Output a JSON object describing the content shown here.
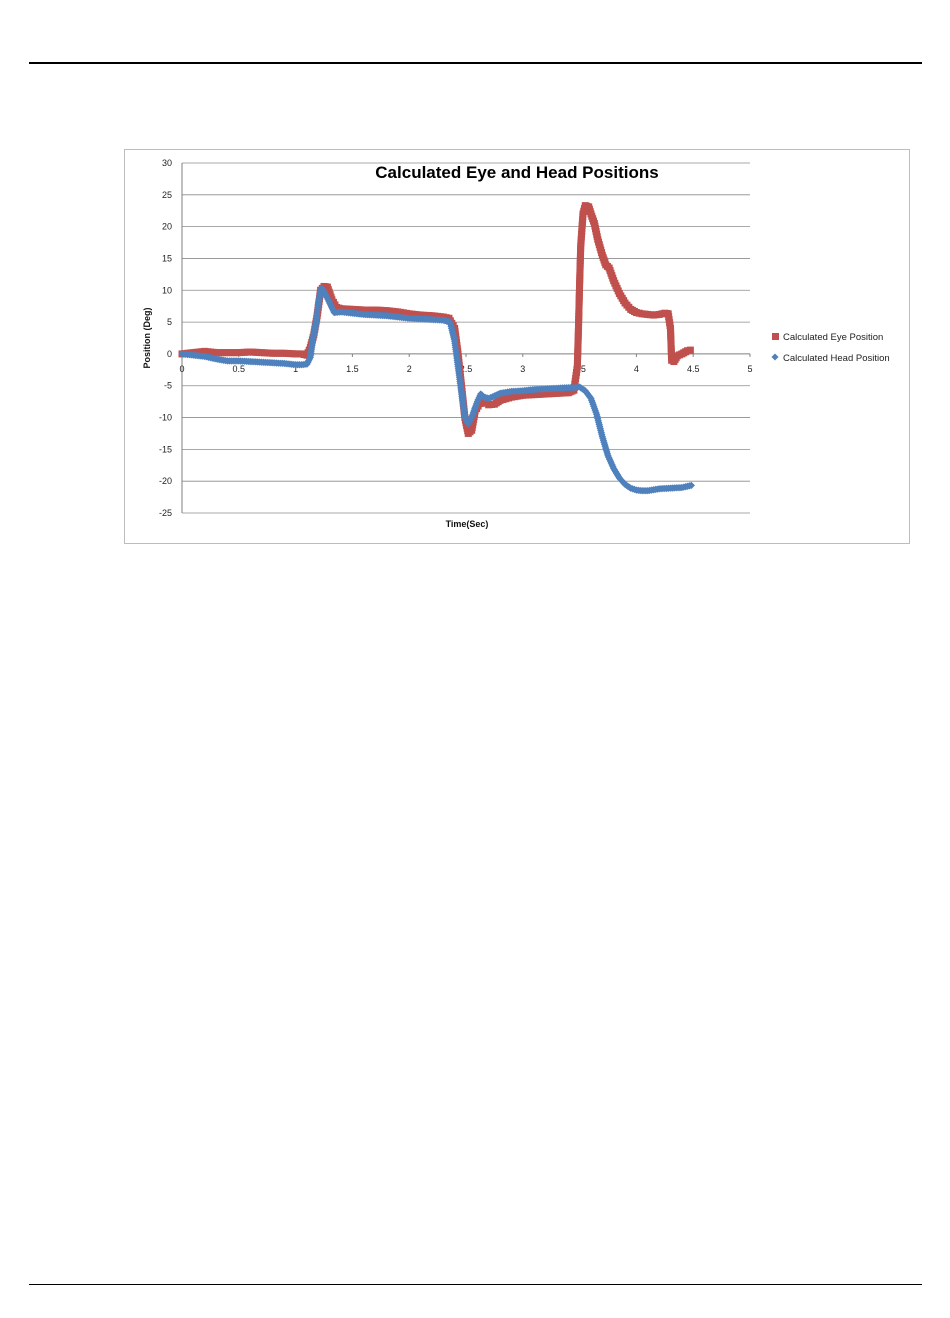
{
  "chart_data": {
    "type": "scatter",
    "title": "Calculated Eye and Head Positions",
    "xlabel": "Time(Sec)",
    "ylabel": "Position (Deg)",
    "xlim": [
      0,
      5
    ],
    "ylim": [
      -25,
      30
    ],
    "xticks": [
      "0",
      "0.5",
      "1",
      "1.5",
      "2",
      "2.5",
      "3",
      "3.5",
      "4",
      "4.5",
      "5"
    ],
    "yticks": [
      "30",
      "25",
      "20",
      "15",
      "10",
      "5",
      "0",
      "-5",
      "-10",
      "-15",
      "-20",
      "-25"
    ],
    "grid": true,
    "legend_position": "right",
    "series": [
      {
        "name": "Calculated Eye Position",
        "color": "#c0504d",
        "marker": "square",
        "points": [
          [
            0,
            0
          ],
          [
            0.1,
            0.2
          ],
          [
            0.2,
            0.4
          ],
          [
            0.3,
            0.2
          ],
          [
            0.4,
            0.2
          ],
          [
            0.5,
            0.2
          ],
          [
            0.6,
            0.3
          ],
          [
            0.7,
            0.2
          ],
          [
            0.8,
            0.1
          ],
          [
            0.9,
            0.1
          ],
          [
            1.0,
            0
          ],
          [
            1.05,
            0
          ],
          [
            1.1,
            -0.2
          ],
          [
            1.13,
            1
          ],
          [
            1.16,
            3
          ],
          [
            1.19,
            6
          ],
          [
            1.22,
            10
          ],
          [
            1.25,
            10.6
          ],
          [
            1.28,
            10.5
          ],
          [
            1.32,
            8.5
          ],
          [
            1.36,
            7.3
          ],
          [
            1.4,
            7.1
          ],
          [
            1.5,
            7.0
          ],
          [
            1.6,
            6.9
          ],
          [
            1.7,
            6.9
          ],
          [
            1.8,
            6.8
          ],
          [
            1.9,
            6.6
          ],
          [
            2.0,
            6.3
          ],
          [
            2.1,
            6.1
          ],
          [
            2.2,
            6.0
          ],
          [
            2.3,
            5.8
          ],
          [
            2.35,
            5.6
          ],
          [
            2.4,
            4
          ],
          [
            2.43,
            0
          ],
          [
            2.46,
            -5
          ],
          [
            2.49,
            -10
          ],
          [
            2.52,
            -12.5
          ],
          [
            2.55,
            -12
          ],
          [
            2.58,
            -9
          ],
          [
            2.62,
            -7.8
          ],
          [
            2.66,
            -7.5
          ],
          [
            2.7,
            -8
          ],
          [
            2.75,
            -7.9
          ],
          [
            2.8,
            -7.3
          ],
          [
            2.9,
            -6.8
          ],
          [
            3.0,
            -6.5
          ],
          [
            3.1,
            -6.4
          ],
          [
            3.2,
            -6.3
          ],
          [
            3.3,
            -6.2
          ],
          [
            3.4,
            -6.1
          ],
          [
            3.45,
            -5.7
          ],
          [
            3.48,
            -2
          ],
          [
            3.49,
            4
          ],
          [
            3.5,
            11
          ],
          [
            3.51,
            17
          ],
          [
            3.53,
            22
          ],
          [
            3.55,
            23.3
          ],
          [
            3.58,
            23.1
          ],
          [
            3.6,
            22
          ],
          [
            3.63,
            20.5
          ],
          [
            3.66,
            18
          ],
          [
            3.7,
            15.5
          ],
          [
            3.73,
            14
          ],
          [
            3.76,
            13.5
          ],
          [
            3.8,
            11.5
          ],
          [
            3.85,
            9.5
          ],
          [
            3.9,
            8
          ],
          [
            3.95,
            7
          ],
          [
            4.0,
            6.5
          ],
          [
            4.05,
            6.3
          ],
          [
            4.1,
            6.2
          ],
          [
            4.15,
            6.1
          ],
          [
            4.2,
            6.2
          ],
          [
            4.25,
            6.4
          ],
          [
            4.28,
            6.3
          ],
          [
            4.3,
            4
          ],
          [
            4.31,
            -1
          ],
          [
            4.33,
            -1.2
          ],
          [
            4.36,
            -0.3
          ],
          [
            4.4,
            0
          ],
          [
            4.45,
            0.5
          ],
          [
            4.5,
            0.7
          ]
        ]
      },
      {
        "name": "Calculated Head Position",
        "color": "#4f81bd",
        "marker": "diamond",
        "points": [
          [
            0,
            0
          ],
          [
            0.1,
            -0.2
          ],
          [
            0.2,
            -0.4
          ],
          [
            0.3,
            -0.8
          ],
          [
            0.4,
            -1.1
          ],
          [
            0.5,
            -1.1
          ],
          [
            0.6,
            -1.2
          ],
          [
            0.7,
            -1.3
          ],
          [
            0.8,
            -1.4
          ],
          [
            0.9,
            -1.5
          ],
          [
            1.0,
            -1.7
          ],
          [
            1.05,
            -1.7
          ],
          [
            1.1,
            -1.6
          ],
          [
            1.13,
            -0.5
          ],
          [
            1.15,
            2
          ],
          [
            1.18,
            5
          ],
          [
            1.2,
            8
          ],
          [
            1.23,
            10.3
          ],
          [
            1.26,
            9.5
          ],
          [
            1.3,
            8
          ],
          [
            1.34,
            6.5
          ],
          [
            1.4,
            6.6
          ],
          [
            1.5,
            6.4
          ],
          [
            1.6,
            6.2
          ],
          [
            1.7,
            6.1
          ],
          [
            1.8,
            6.0
          ],
          [
            1.9,
            5.8
          ],
          [
            2.0,
            5.6
          ],
          [
            2.1,
            5.5
          ],
          [
            2.2,
            5.4
          ],
          [
            2.3,
            5.3
          ],
          [
            2.36,
            5.0
          ],
          [
            2.4,
            2
          ],
          [
            2.43,
            -2
          ],
          [
            2.46,
            -6
          ],
          [
            2.49,
            -10
          ],
          [
            2.52,
            -11
          ],
          [
            2.56,
            -9.5
          ],
          [
            2.6,
            -7.5
          ],
          [
            2.63,
            -6.3
          ],
          [
            2.66,
            -6.8
          ],
          [
            2.7,
            -7
          ],
          [
            2.8,
            -6.2
          ],
          [
            2.9,
            -5.9
          ],
          [
            3.0,
            -5.8
          ],
          [
            3.1,
            -5.6
          ],
          [
            3.2,
            -5.5
          ],
          [
            3.3,
            -5.4
          ],
          [
            3.4,
            -5.3
          ],
          [
            3.45,
            -5.3
          ],
          [
            3.5,
            -5.2
          ],
          [
            3.55,
            -5.8
          ],
          [
            3.6,
            -7
          ],
          [
            3.65,
            -9.5
          ],
          [
            3.7,
            -13
          ],
          [
            3.75,
            -16
          ],
          [
            3.8,
            -18
          ],
          [
            3.85,
            -19.5
          ],
          [
            3.9,
            -20.5
          ],
          [
            3.95,
            -21.1
          ],
          [
            4.0,
            -21.4
          ],
          [
            4.05,
            -21.5
          ],
          [
            4.1,
            -21.5
          ],
          [
            4.2,
            -21.2
          ],
          [
            4.3,
            -21.1
          ],
          [
            4.4,
            -21.0
          ],
          [
            4.45,
            -20.8
          ],
          [
            4.5,
            -20.6
          ]
        ]
      }
    ]
  }
}
